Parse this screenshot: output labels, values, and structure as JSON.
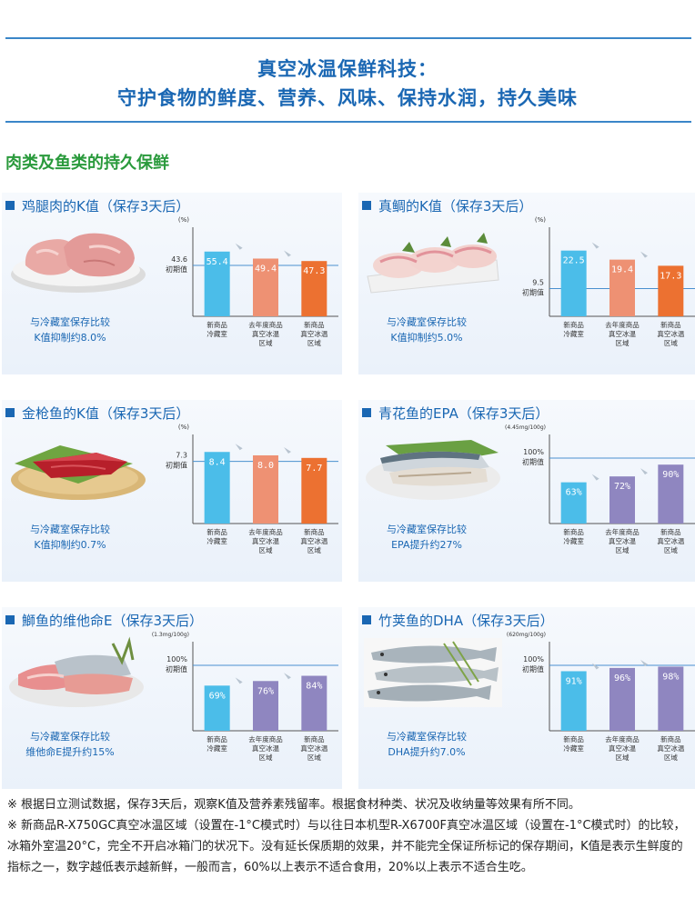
{
  "header": {
    "title_line1": "真空冰温保鲜科技：",
    "title_line2": "守护食物的鲜度、营养、风味、保持水润，持久美味"
  },
  "section_title": "肉类及鱼类的持久保鲜",
  "colors": {
    "blue": "#4bbde9",
    "salmon": "#ee9173",
    "orange": "#ec7131",
    "purple": "#8f86c0",
    "accent": "#1a67b3",
    "green": "#2a9a3c"
  },
  "panels": [
    {
      "title": "鸡腿肉的K值（保存3天后）",
      "note_line1": "与冷藏室保存比较",
      "note_line2": "K值抑制约8.0%",
      "photo": "chicken-thigh-photo",
      "chart_data": {
        "type": "bar",
        "unit": "(%)",
        "baseline_value": "43.6",
        "baseline_label": "初期值",
        "values": [
          55.4,
          49.4,
          47.3
        ],
        "labels": [
          "55.4",
          "49.4",
          "47.3"
        ],
        "ylim": [
          0,
          70
        ],
        "baseline": 43.6,
        "categories": [
          [
            "新商品",
            "冷藏室"
          ],
          [
            "去年度商品",
            "真空冰温",
            "区域"
          ],
          [
            "新商品",
            "真空冰温",
            "区域"
          ]
        ],
        "colors": [
          "#4bbde9",
          "#ee9173",
          "#ec7131"
        ]
      }
    },
    {
      "title": "真鲷的K值（保存3天后）",
      "note_line1": "与冷藏室保存比较",
      "note_line2": "K值抑制约5.0%",
      "photo": "sea-bream-photo",
      "chart_data": {
        "type": "bar",
        "unit": "(%)",
        "baseline_value": "9.5",
        "baseline_label": "初期值",
        "values": [
          22.5,
          19.4,
          17.3
        ],
        "labels": [
          "22.5",
          "19.4",
          "17.3"
        ],
        "ylim": [
          0,
          28
        ],
        "baseline": 9.5,
        "categories": [
          [
            "新商品",
            "冷藏室"
          ],
          [
            "去年度商品",
            "真空冰温",
            "区域"
          ],
          [
            "新商品",
            "真空冰温",
            "区域"
          ]
        ],
        "colors": [
          "#4bbde9",
          "#ee9173",
          "#ec7131"
        ]
      }
    },
    {
      "title": "金枪鱼的K值（保存3天后）",
      "note_line1": "与冷藏室保存比较",
      "note_line2": "K值抑制约0.7%",
      "photo": "tuna-photo",
      "chart_data": {
        "type": "bar",
        "unit": "(%)",
        "baseline_value": "7.3",
        "baseline_label": "初期值",
        "values": [
          8.4,
          8.0,
          7.7
        ],
        "labels": [
          "8.4",
          "8.0",
          "7.7"
        ],
        "ylim": [
          0,
          9.6
        ],
        "baseline": 7.3,
        "categories": [
          [
            "新商品",
            "冷藏室"
          ],
          [
            "去年度商品",
            "真空冰温",
            "区域"
          ],
          [
            "新商品",
            "真空冰温",
            "区域"
          ]
        ],
        "colors": [
          "#4bbde9",
          "#ee9173",
          "#ec7131"
        ]
      }
    },
    {
      "title": "青花鱼的EPA（保存3天后）",
      "note_line1": "与冷藏室保存比较",
      "note_line2": "EPA提升约27%",
      "photo": "mackerel-photo",
      "chart_data": {
        "type": "bar",
        "unit": "(4.45mg/100g)",
        "baseline_value": "100%",
        "baseline_label": "初期值",
        "values": [
          63,
          72,
          90
        ],
        "labels": [
          "63%",
          "72%",
          "90%"
        ],
        "ylim": [
          0,
          125
        ],
        "baseline": 100,
        "categories": [
          [
            "新商品",
            "冷藏室"
          ],
          [
            "去年度商品",
            "真空冰温",
            "区域"
          ],
          [
            "新商品",
            "真空冰温",
            "区域"
          ]
        ],
        "colors": [
          "#4bbde9",
          "#8f86c0",
          "#8f86c0"
        ]
      }
    },
    {
      "title": "鰤鱼的维他命E（保存3天后）",
      "note_line1": "与冷藏室保存比较",
      "note_line2": "维他命E提升约15%",
      "photo": "yellowtail-photo",
      "chart_data": {
        "type": "bar",
        "unit": "(1.3mg/100g)",
        "baseline_value": "100%",
        "baseline_label": "初期值",
        "values": [
          69,
          76,
          84
        ],
        "labels": [
          "69%",
          "76%",
          "84%"
        ],
        "ylim": [
          0,
          125
        ],
        "baseline": 100,
        "categories": [
          [
            "新商品",
            "冷藏室"
          ],
          [
            "去年度商品",
            "真空冰温",
            "区域"
          ],
          [
            "新商品",
            "真空冰温",
            "区域"
          ]
        ],
        "colors": [
          "#4bbde9",
          "#8f86c0",
          "#8f86c0"
        ]
      }
    },
    {
      "title": "竹荚鱼的DHA（保存3天后）",
      "note_line1": "与冷藏室保存比较",
      "note_line2": "DHA提升约7.0%",
      "photo": "horse-mackerel-photo",
      "chart_data": {
        "type": "bar",
        "unit": "(620mg/100g)",
        "baseline_value": "100%",
        "baseline_label": "初期值",
        "values": [
          91,
          96,
          98
        ],
        "labels": [
          "91%",
          "96%",
          "98%"
        ],
        "ylim": [
          0,
          125
        ],
        "baseline": 100,
        "categories": [
          [
            "新商品",
            "冷藏室"
          ],
          [
            "去年度商品",
            "真空冰温",
            "区域"
          ],
          [
            "新商品",
            "真空冰温",
            "区域"
          ]
        ],
        "colors": [
          "#4bbde9",
          "#8f86c0",
          "#8f86c0"
        ]
      }
    }
  ],
  "footnotes": [
    "※ 根据日立测试数据，保存3天后，观察K值及营养素残留率。根据食材种类、状况及收纳量等效果有所不同。",
    "※ 新商品R-X750GC真空冰温区域（设置在-1°C模式时）与以往日本机型R-X6700F真空冰温区域（设置在-1°C模式时）的比较，冰箱外室温20°C，完全不开启冰箱门的状况下。没有延长保质期的效果，并不能完全保证所标记的保存期间，K值是表示生鲜度的指标之一，数字越低表示越新鲜，一般而言，60%以上表示不适合食用，20%以上表示不适合生吃。"
  ]
}
